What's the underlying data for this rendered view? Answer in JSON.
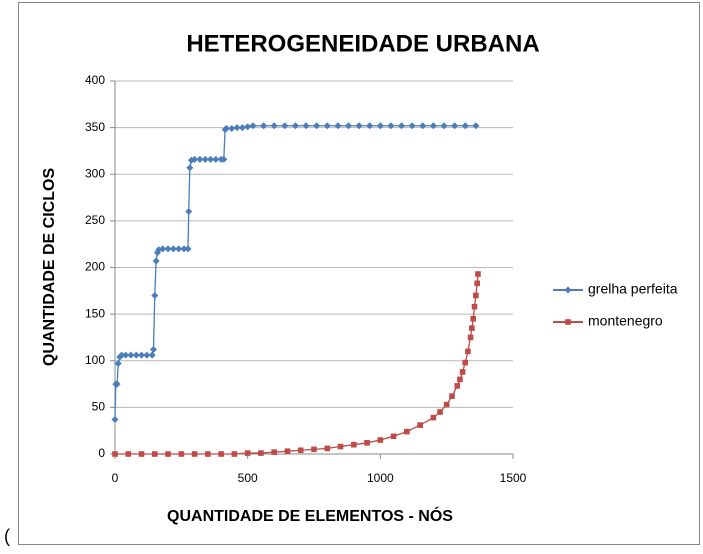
{
  "chart_data": {
    "type": "scatter-line",
    "title": "HETEROGENEIDADE URBANA",
    "x_label": "QUANTIDADE DE ELEMENTOS - NÓS",
    "y_label": "QUANTIDADE DE CICLOS",
    "xlim": [
      0,
      1500
    ],
    "xticks": [
      0,
      500,
      1000,
      1500
    ],
    "ylim": [
      0,
      400
    ],
    "yticks": [
      0,
      50,
      100,
      150,
      200,
      250,
      300,
      350,
      400
    ],
    "grid": true,
    "legend": "right",
    "series": [
      {
        "name": "grelha perfeita",
        "color": "#4a7ebb",
        "marker": "diamond",
        "x": [
          0,
          3,
          8,
          12,
          18,
          25,
          40,
          60,
          80,
          100,
          120,
          140,
          145,
          150,
          155,
          160,
          165,
          180,
          200,
          220,
          240,
          260,
          275,
          278,
          282,
          288,
          300,
          320,
          340,
          360,
          380,
          400,
          410,
          415,
          420,
          440,
          460,
          480,
          500,
          520,
          560,
          600,
          640,
          680,
          720,
          760,
          800,
          840,
          880,
          920,
          960,
          1000,
          1040,
          1080,
          1120,
          1160,
          1200,
          1240,
          1280,
          1320,
          1360
        ],
        "values": [
          37,
          75,
          75,
          97,
          104,
          106,
          106,
          106,
          106,
          106,
          106,
          106,
          112,
          170,
          207,
          216,
          219,
          220,
          220,
          220,
          220,
          220,
          220,
          260,
          307,
          315,
          316,
          316,
          316,
          316,
          316,
          316,
          316,
          348,
          349,
          349,
          350,
          350,
          351,
          352,
          352,
          352,
          352,
          352,
          352,
          352,
          352,
          352,
          352,
          352,
          352,
          352,
          352,
          352,
          352,
          352,
          352,
          352,
          352,
          352,
          352
        ]
      },
      {
        "name": "montenegro",
        "color": "#be4b48",
        "marker": "square",
        "x": [
          0,
          50,
          100,
          150,
          200,
          250,
          300,
          350,
          400,
          450,
          500,
          550,
          600,
          650,
          700,
          750,
          800,
          850,
          900,
          950,
          1000,
          1050,
          1100,
          1150,
          1200,
          1225,
          1250,
          1270,
          1290,
          1300,
          1310,
          1320,
          1330,
          1340,
          1345,
          1350,
          1355,
          1360,
          1365,
          1368
        ],
        "values": [
          0,
          0,
          0,
          0,
          0,
          0,
          0,
          0,
          0,
          0,
          1,
          1,
          2,
          3,
          4,
          5,
          6,
          8,
          10,
          12,
          15,
          19,
          24,
          31,
          39,
          45,
          53,
          62,
          73,
          80,
          88,
          98,
          110,
          125,
          135,
          145,
          158,
          170,
          183,
          193
        ]
      }
    ]
  },
  "caption": "("
}
